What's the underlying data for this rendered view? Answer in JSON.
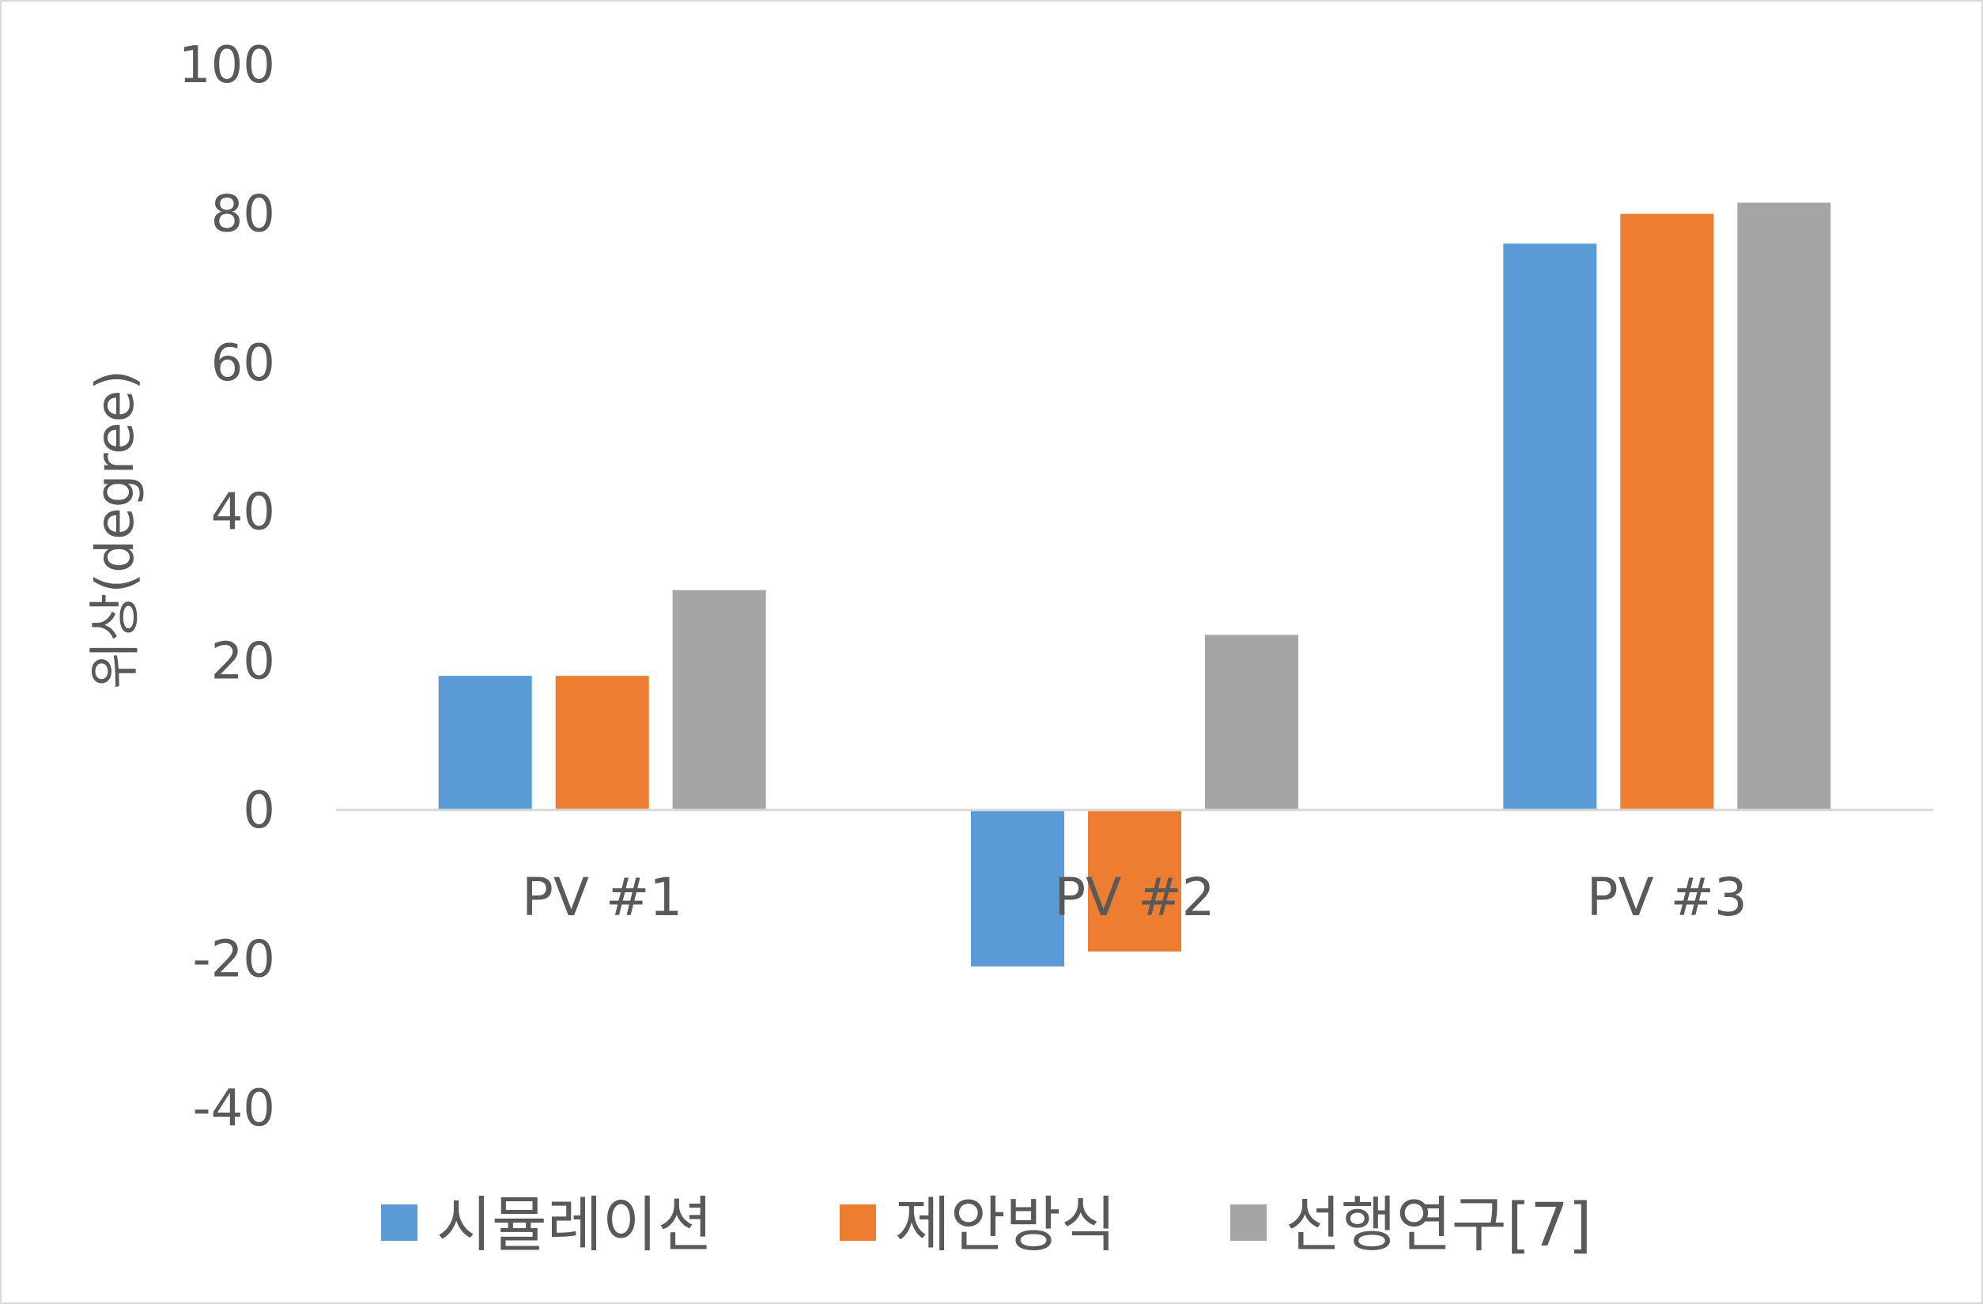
{
  "chart_data": {
    "type": "bar",
    "title": "",
    "xlabel": "",
    "ylabel": "위상(degree)",
    "ylim": [
      -40,
      100
    ],
    "yticks": [
      -40,
      -20,
      0,
      20,
      40,
      60,
      80,
      100
    ],
    "categories": [
      "PV #1",
      "PV #2",
      "PV #3"
    ],
    "series": [
      {
        "name": "시뮬레이션",
        "color": "#5b9bd5",
        "values": [
          18,
          -21,
          76
        ]
      },
      {
        "name": "제안방식",
        "color": "#ed7d31",
        "values": [
          18,
          -19,
          80
        ]
      },
      {
        "name": "선행연구[7]",
        "color": "#a5a5a5",
        "values": [
          29.5,
          23.5,
          81.5
        ]
      }
    ],
    "grid": false,
    "legend": "bottom"
  }
}
